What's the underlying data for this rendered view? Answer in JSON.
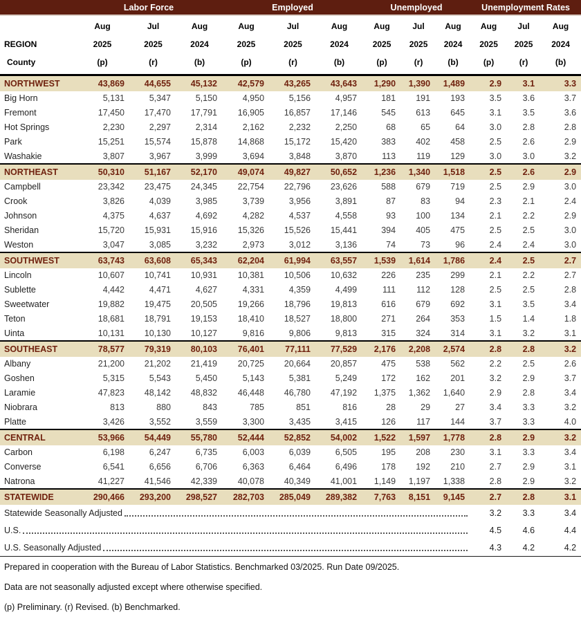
{
  "table": {
    "corner": {
      "line1": "REGION",
      "line2": "County"
    },
    "groups": [
      "Labor Force",
      "Employed",
      "Unemployed",
      "Unemployment Rates"
    ],
    "subcols": [
      {
        "month": "Aug",
        "year": "2025",
        "flag": "(p)"
      },
      {
        "month": "Jul",
        "year": "2025",
        "flag": "(r)"
      },
      {
        "month": "Aug",
        "year": "2024",
        "flag": "(b)"
      }
    ],
    "sections": [
      {
        "region": {
          "name": "NORTHWEST",
          "values": [
            "43,869",
            "44,655",
            "45,132",
            "42,579",
            "43,265",
            "43,643",
            "1,290",
            "1,390",
            "1,489",
            "2.9",
            "3.1",
            "3.3"
          ]
        },
        "counties": [
          {
            "name": "Big Horn",
            "values": [
              "5,131",
              "5,347",
              "5,150",
              "4,950",
              "5,156",
              "4,957",
              "181",
              "191",
              "193",
              "3.5",
              "3.6",
              "3.7"
            ]
          },
          {
            "name": "Fremont",
            "values": [
              "17,450",
              "17,470",
              "17,791",
              "16,905",
              "16,857",
              "17,146",
              "545",
              "613",
              "645",
              "3.1",
              "3.5",
              "3.6"
            ]
          },
          {
            "name": "Hot Springs",
            "values": [
              "2,230",
              "2,297",
              "2,314",
              "2,162",
              "2,232",
              "2,250",
              "68",
              "65",
              "64",
              "3.0",
              "2.8",
              "2.8"
            ]
          },
          {
            "name": "Park",
            "values": [
              "15,251",
              "15,574",
              "15,878",
              "14,868",
              "15,172",
              "15,420",
              "383",
              "402",
              "458",
              "2.5",
              "2.6",
              "2.9"
            ]
          },
          {
            "name": "Washakie",
            "values": [
              "3,807",
              "3,967",
              "3,999",
              "3,694",
              "3,848",
              "3,870",
              "113",
              "119",
              "129",
              "3.0",
              "3.0",
              "3.2"
            ]
          }
        ]
      },
      {
        "region": {
          "name": "NORTHEAST",
          "values": [
            "50,310",
            "51,167",
            "52,170",
            "49,074",
            "49,827",
            "50,652",
            "1,236",
            "1,340",
            "1,518",
            "2.5",
            "2.6",
            "2.9"
          ]
        },
        "counties": [
          {
            "name": "Campbell",
            "values": [
              "23,342",
              "23,475",
              "24,345",
              "22,754",
              "22,796",
              "23,626",
              "588",
              "679",
              "719",
              "2.5",
              "2.9",
              "3.0"
            ]
          },
          {
            "name": "Crook",
            "values": [
              "3,826",
              "4,039",
              "3,985",
              "3,739",
              "3,956",
              "3,891",
              "87",
              "83",
              "94",
              "2.3",
              "2.1",
              "2.4"
            ]
          },
          {
            "name": "Johnson",
            "values": [
              "4,375",
              "4,637",
              "4,692",
              "4,282",
              "4,537",
              "4,558",
              "93",
              "100",
              "134",
              "2.1",
              "2.2",
              "2.9"
            ]
          },
          {
            "name": "Sheridan",
            "values": [
              "15,720",
              "15,931",
              "15,916",
              "15,326",
              "15,526",
              "15,441",
              "394",
              "405",
              "475",
              "2.5",
              "2.5",
              "3.0"
            ]
          },
          {
            "name": "Weston",
            "values": [
              "3,047",
              "3,085",
              "3,232",
              "2,973",
              "3,012",
              "3,136",
              "74",
              "73",
              "96",
              "2.4",
              "2.4",
              "3.0"
            ]
          }
        ]
      },
      {
        "region": {
          "name": "SOUTHWEST",
          "values": [
            "63,743",
            "63,608",
            "65,343",
            "62,204",
            "61,994",
            "63,557",
            "1,539",
            "1,614",
            "1,786",
            "2.4",
            "2.5",
            "2.7"
          ]
        },
        "counties": [
          {
            "name": "Lincoln",
            "values": [
              "10,607",
              "10,741",
              "10,931",
              "10,381",
              "10,506",
              "10,632",
              "226",
              "235",
              "299",
              "2.1",
              "2.2",
              "2.7"
            ]
          },
          {
            "name": "Sublette",
            "values": [
              "4,442",
              "4,471",
              "4,627",
              "4,331",
              "4,359",
              "4,499",
              "111",
              "112",
              "128",
              "2.5",
              "2.5",
              "2.8"
            ]
          },
          {
            "name": "Sweetwater",
            "values": [
              "19,882",
              "19,475",
              "20,505",
              "19,266",
              "18,796",
              "19,813",
              "616",
              "679",
              "692",
              "3.1",
              "3.5",
              "3.4"
            ]
          },
          {
            "name": "Teton",
            "values": [
              "18,681",
              "18,791",
              "19,153",
              "18,410",
              "18,527",
              "18,800",
              "271",
              "264",
              "353",
              "1.5",
              "1.4",
              "1.8"
            ]
          },
          {
            "name": "Uinta",
            "values": [
              "10,131",
              "10,130",
              "10,127",
              "9,816",
              "9,806",
              "9,813",
              "315",
              "324",
              "314",
              "3.1",
              "3.2",
              "3.1"
            ]
          }
        ]
      },
      {
        "region": {
          "name": "SOUTHEAST",
          "values": [
            "78,577",
            "79,319",
            "80,103",
            "76,401",
            "77,111",
            "77,529",
            "2,176",
            "2,208",
            "2,574",
            "2.8",
            "2.8",
            "3.2"
          ]
        },
        "counties": [
          {
            "name": "Albany",
            "values": [
              "21,200",
              "21,202",
              "21,419",
              "20,725",
              "20,664",
              "20,857",
              "475",
              "538",
              "562",
              "2.2",
              "2.5",
              "2.6"
            ]
          },
          {
            "name": "Goshen",
            "values": [
              "5,315",
              "5,543",
              "5,450",
              "5,143",
              "5,381",
              "5,249",
              "172",
              "162",
              "201",
              "3.2",
              "2.9",
              "3.7"
            ]
          },
          {
            "name": "Laramie",
            "values": [
              "47,823",
              "48,142",
              "48,832",
              "46,448",
              "46,780",
              "47,192",
              "1,375",
              "1,362",
              "1,640",
              "2.9",
              "2.8",
              "3.4"
            ]
          },
          {
            "name": "Niobrara",
            "values": [
              "813",
              "880",
              "843",
              "785",
              "851",
              "816",
              "28",
              "29",
              "27",
              "3.4",
              "3.3",
              "3.2"
            ]
          },
          {
            "name": "Platte",
            "values": [
              "3,426",
              "3,552",
              "3,559",
              "3,300",
              "3,435",
              "3,415",
              "126",
              "117",
              "144",
              "3.7",
              "3.3",
              "4.0"
            ]
          }
        ]
      },
      {
        "region": {
          "name": "CENTRAL",
          "values": [
            "53,966",
            "54,449",
            "55,780",
            "52,444",
            "52,852",
            "54,002",
            "1,522",
            "1,597",
            "1,778",
            "2.8",
            "2.9",
            "3.2"
          ]
        },
        "counties": [
          {
            "name": "Carbon",
            "values": [
              "6,198",
              "6,247",
              "6,735",
              "6,003",
              "6,039",
              "6,505",
              "195",
              "208",
              "230",
              "3.1",
              "3.3",
              "3.4"
            ]
          },
          {
            "name": "Converse",
            "values": [
              "6,541",
              "6,656",
              "6,706",
              "6,363",
              "6,464",
              "6,496",
              "178",
              "192",
              "210",
              "2.7",
              "2.9",
              "3.1"
            ]
          },
          {
            "name": "Natrona",
            "values": [
              "41,227",
              "41,546",
              "42,339",
              "40,078",
              "40,349",
              "41,001",
              "1,149",
              "1,197",
              "1,338",
              "2.8",
              "2.9",
              "3.2"
            ]
          }
        ]
      },
      {
        "region": {
          "name": "STATEWIDE",
          "values": [
            "290,466",
            "293,200",
            "298,527",
            "282,703",
            "285,049",
            "289,382",
            "7,763",
            "8,151",
            "9,145",
            "2.7",
            "2.8",
            "3.1"
          ]
        },
        "counties": []
      }
    ],
    "footer_rows": [
      {
        "label": "Statewide Seasonally Adjusted",
        "rates": [
          "3.2",
          "3.3",
          "3.4"
        ]
      },
      {
        "label": "U.S.",
        "rates": [
          "4.5",
          "4.6",
          "4.4"
        ]
      },
      {
        "label": "U.S. Seasonally Adjusted",
        "rates": [
          "4.3",
          "4.2",
          "4.2"
        ]
      }
    ],
    "notes": [
      "Prepared in cooperation with the Bureau of Labor Statistics.  Benchmarked 03/2025. Run Date 09/2025.",
      "Data are not seasonally adjusted except where otherwise specified.",
      "(p) Preliminary. (r) Revised. (b) Benchmarked."
    ]
  },
  "colors": {
    "group_band_bg": "#5E1E10",
    "group_band_text": "#FFFFFF",
    "region_row_bg": "#E8DEBD",
    "region_row_text": "#70220F",
    "body_text": "#3A3A3A"
  }
}
